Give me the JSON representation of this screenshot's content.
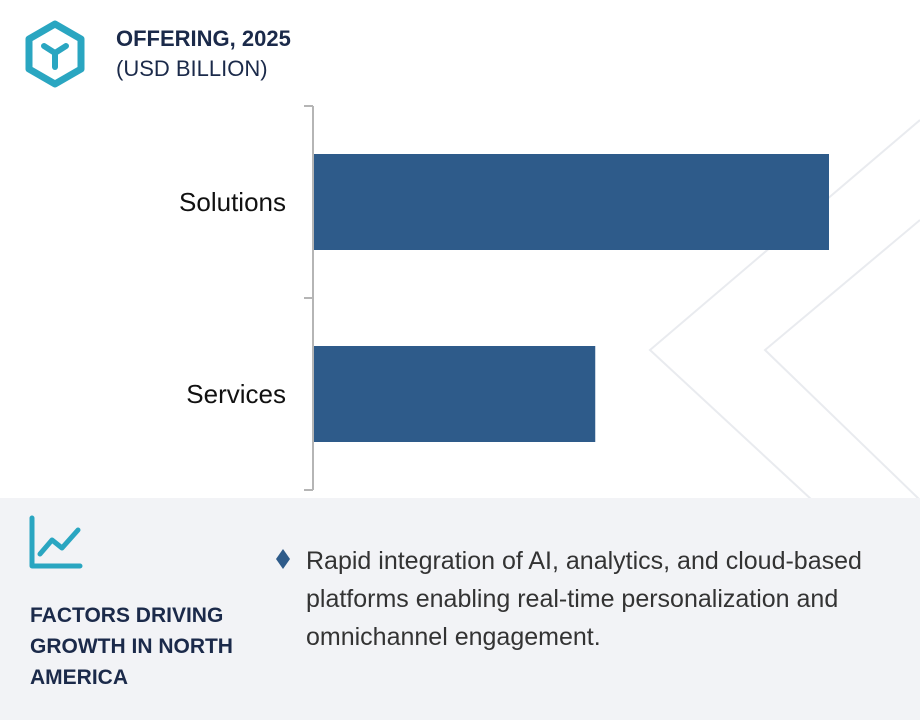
{
  "header": {
    "title": "OFFERING, 2025",
    "subtitle": "(USD BILLION)",
    "logo_icon": "cube-icon"
  },
  "chart_data": {
    "type": "bar",
    "orientation": "horizontal",
    "categories": [
      "Solutions",
      "Services"
    ],
    "values": [
      100,
      54.7
    ],
    "value_labels_shown": false,
    "xlim": [
      0,
      100
    ],
    "bar_color": "#2e5b8a",
    "grid": false,
    "title": "",
    "xlabel": "",
    "ylabel": ""
  },
  "footer": {
    "icon": "trend-line-chart-icon",
    "heading": "FACTORS DRIVING GROWTH IN NORTH AMERICA",
    "bullet_icon": "diamond-bullet-icon",
    "bullets": [
      "Rapid integration of AI, analytics, and cloud-based platforms enabling real-time personalization and omnichannel engagement."
    ]
  },
  "colors": {
    "accent": "#2aa6c1",
    "bar": "#2e5b8a",
    "heading": "#1b2a4a",
    "footer_bg": "#f2f3f6"
  }
}
